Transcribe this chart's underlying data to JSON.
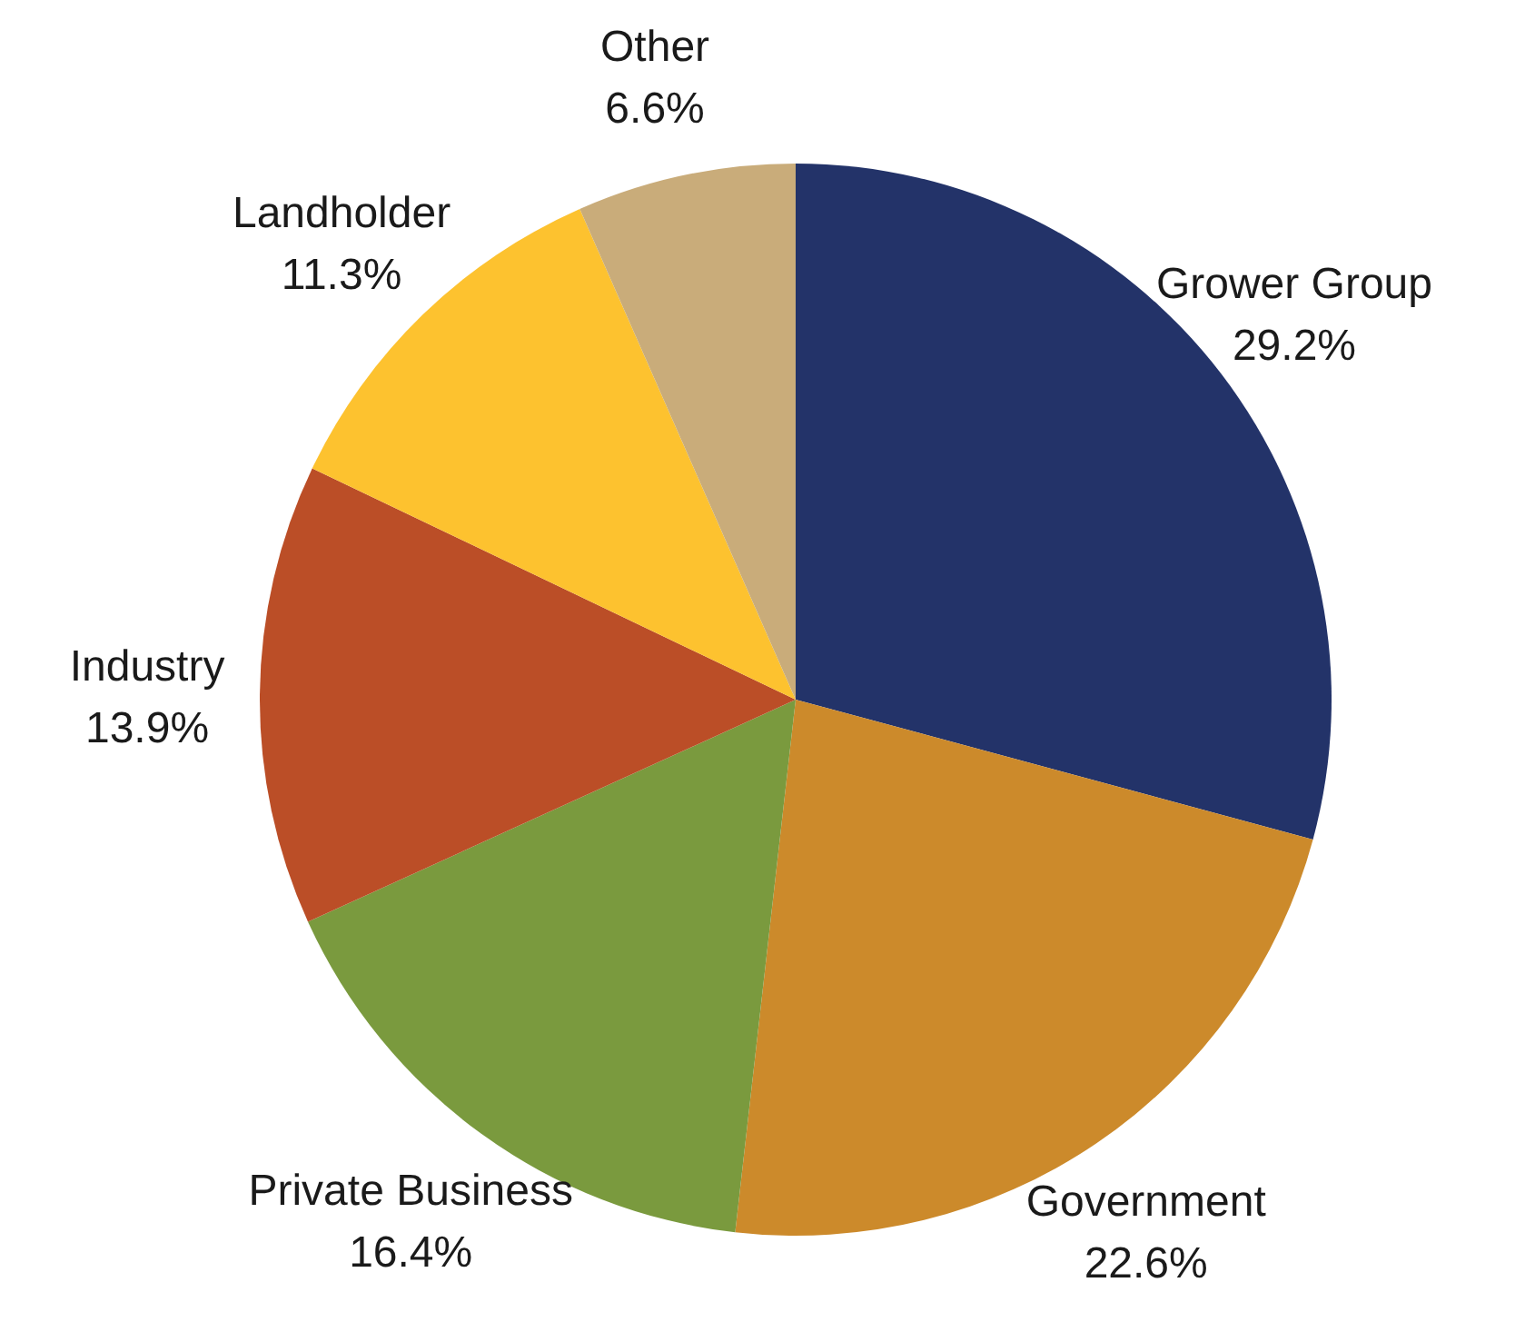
{
  "chart_data": {
    "type": "pie",
    "categories": [
      "Grower Group",
      "Government",
      "Private Business",
      "Industry",
      "Landholder",
      "Other"
    ],
    "values": [
      29.2,
      22.6,
      16.4,
      13.9,
      11.3,
      6.6
    ],
    "value_labels": [
      "29.2%",
      "22.6%",
      "16.4%",
      "13.9%",
      "11.3%",
      "6.6%"
    ],
    "colors": [
      "#233369",
      "#cc8a2b",
      "#7a9a3e",
      "#bb4e27",
      "#fdc22f",
      "#c9ac7a"
    ],
    "legend": false
  }
}
